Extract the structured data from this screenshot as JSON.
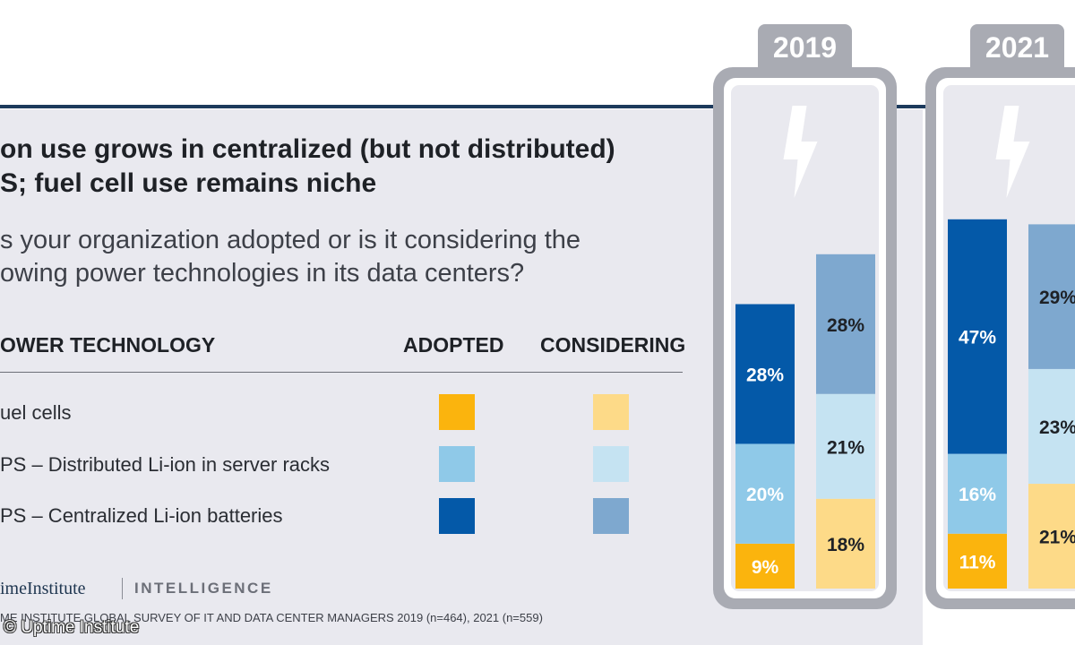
{
  "header": {
    "title_line1": "on use grows in centralized (but not distributed)",
    "title_line2": "S; fuel cell use remains niche",
    "question_line1": "s your organization adopted or is it considering the",
    "question_line2": "owing power technologies in its data centers?"
  },
  "legend": {
    "col_technology": "OWER TECHNOLOGY",
    "col_adopted": "ADOPTED",
    "col_considering": "CONSIDERING",
    "rows": [
      {
        "label": "uel cells",
        "adopted_color": "#FBB40D",
        "considering_color": "#FDDA88"
      },
      {
        "label": "PS – Distributed Li-ion in server racks",
        "adopted_color": "#8FC9E8",
        "considering_color": "#C5E3F2"
      },
      {
        "label": "PS – Centralized Li-ion batteries",
        "adopted_color": "#0459A8",
        "considering_color": "#7EA8CF"
      }
    ]
  },
  "footer": {
    "brand": "imeInstitute",
    "brand_sub": "INTELLIGENCE",
    "source": "ME INSTITUTE GLOBAL SURVEY OF IT AND DATA CENTER MANAGERS 2019 (n=464), 2021 (n=559)",
    "copyright": "© Uptime Institute"
  },
  "colors": {
    "fuel_adopted": "#FBB40D",
    "fuel_considering": "#FDDA88",
    "distributed_adopted": "#8FC9E8",
    "distributed_considering": "#C5E3F2",
    "centralized_adopted": "#0459A8",
    "centralized_considering": "#7EA8CF",
    "battery_frame": "#A9ABB3",
    "battery_inner": "#E9E9EF"
  },
  "chart_data": {
    "type": "bar",
    "stacked": true,
    "unit": "%",
    "stack_order": [
      "Fuel cells",
      "UPS – Distributed Li-ion in server racks",
      "UPS – Centralized Li-ion batteries"
    ],
    "groups": [
      {
        "year": "2019",
        "adopted": [
          {
            "name": "Fuel cells",
            "value": 9,
            "label": "9%"
          },
          {
            "name": "UPS – Distributed Li-ion in server racks",
            "value": 20,
            "label": "20%"
          },
          {
            "name": "UPS – Centralized Li-ion batteries",
            "value": 28,
            "label": "28%"
          }
        ],
        "considering": [
          {
            "name": "Fuel cells",
            "value": 18,
            "label": "18%"
          },
          {
            "name": "UPS – Distributed Li-ion in server racks",
            "value": 21,
            "label": "21%"
          },
          {
            "name": "UPS – Centralized Li-ion batteries",
            "value": 28,
            "label": "28%"
          }
        ]
      },
      {
        "year": "2021",
        "adopted": [
          {
            "name": "Fuel cells",
            "value": 11,
            "label": "11%"
          },
          {
            "name": "UPS – Distributed Li-ion in server racks",
            "value": 16,
            "label": "16%"
          },
          {
            "name": "UPS – Centralized Li-ion batteries",
            "value": 47,
            "label": "47%"
          }
        ],
        "considering": [
          {
            "name": "Fuel cells",
            "value": 21,
            "label": "21%"
          },
          {
            "name": "UPS – Distributed Li-ion in server racks",
            "value": 23,
            "label": "23%"
          },
          {
            "name": "UPS – Centralized Li-ion batteries",
            "value": 29,
            "label": "29%"
          }
        ]
      }
    ]
  }
}
